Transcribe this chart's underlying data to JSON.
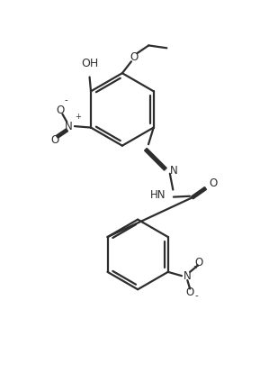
{
  "bg_color": "#ffffff",
  "line_color": "#2d2d2d",
  "line_width": 1.6,
  "font_size": 8.5,
  "fig_width": 2.89,
  "fig_height": 4.24,
  "dpi": 100,
  "xlim": [
    0,
    10
  ],
  "ylim": [
    0,
    14.7
  ]
}
